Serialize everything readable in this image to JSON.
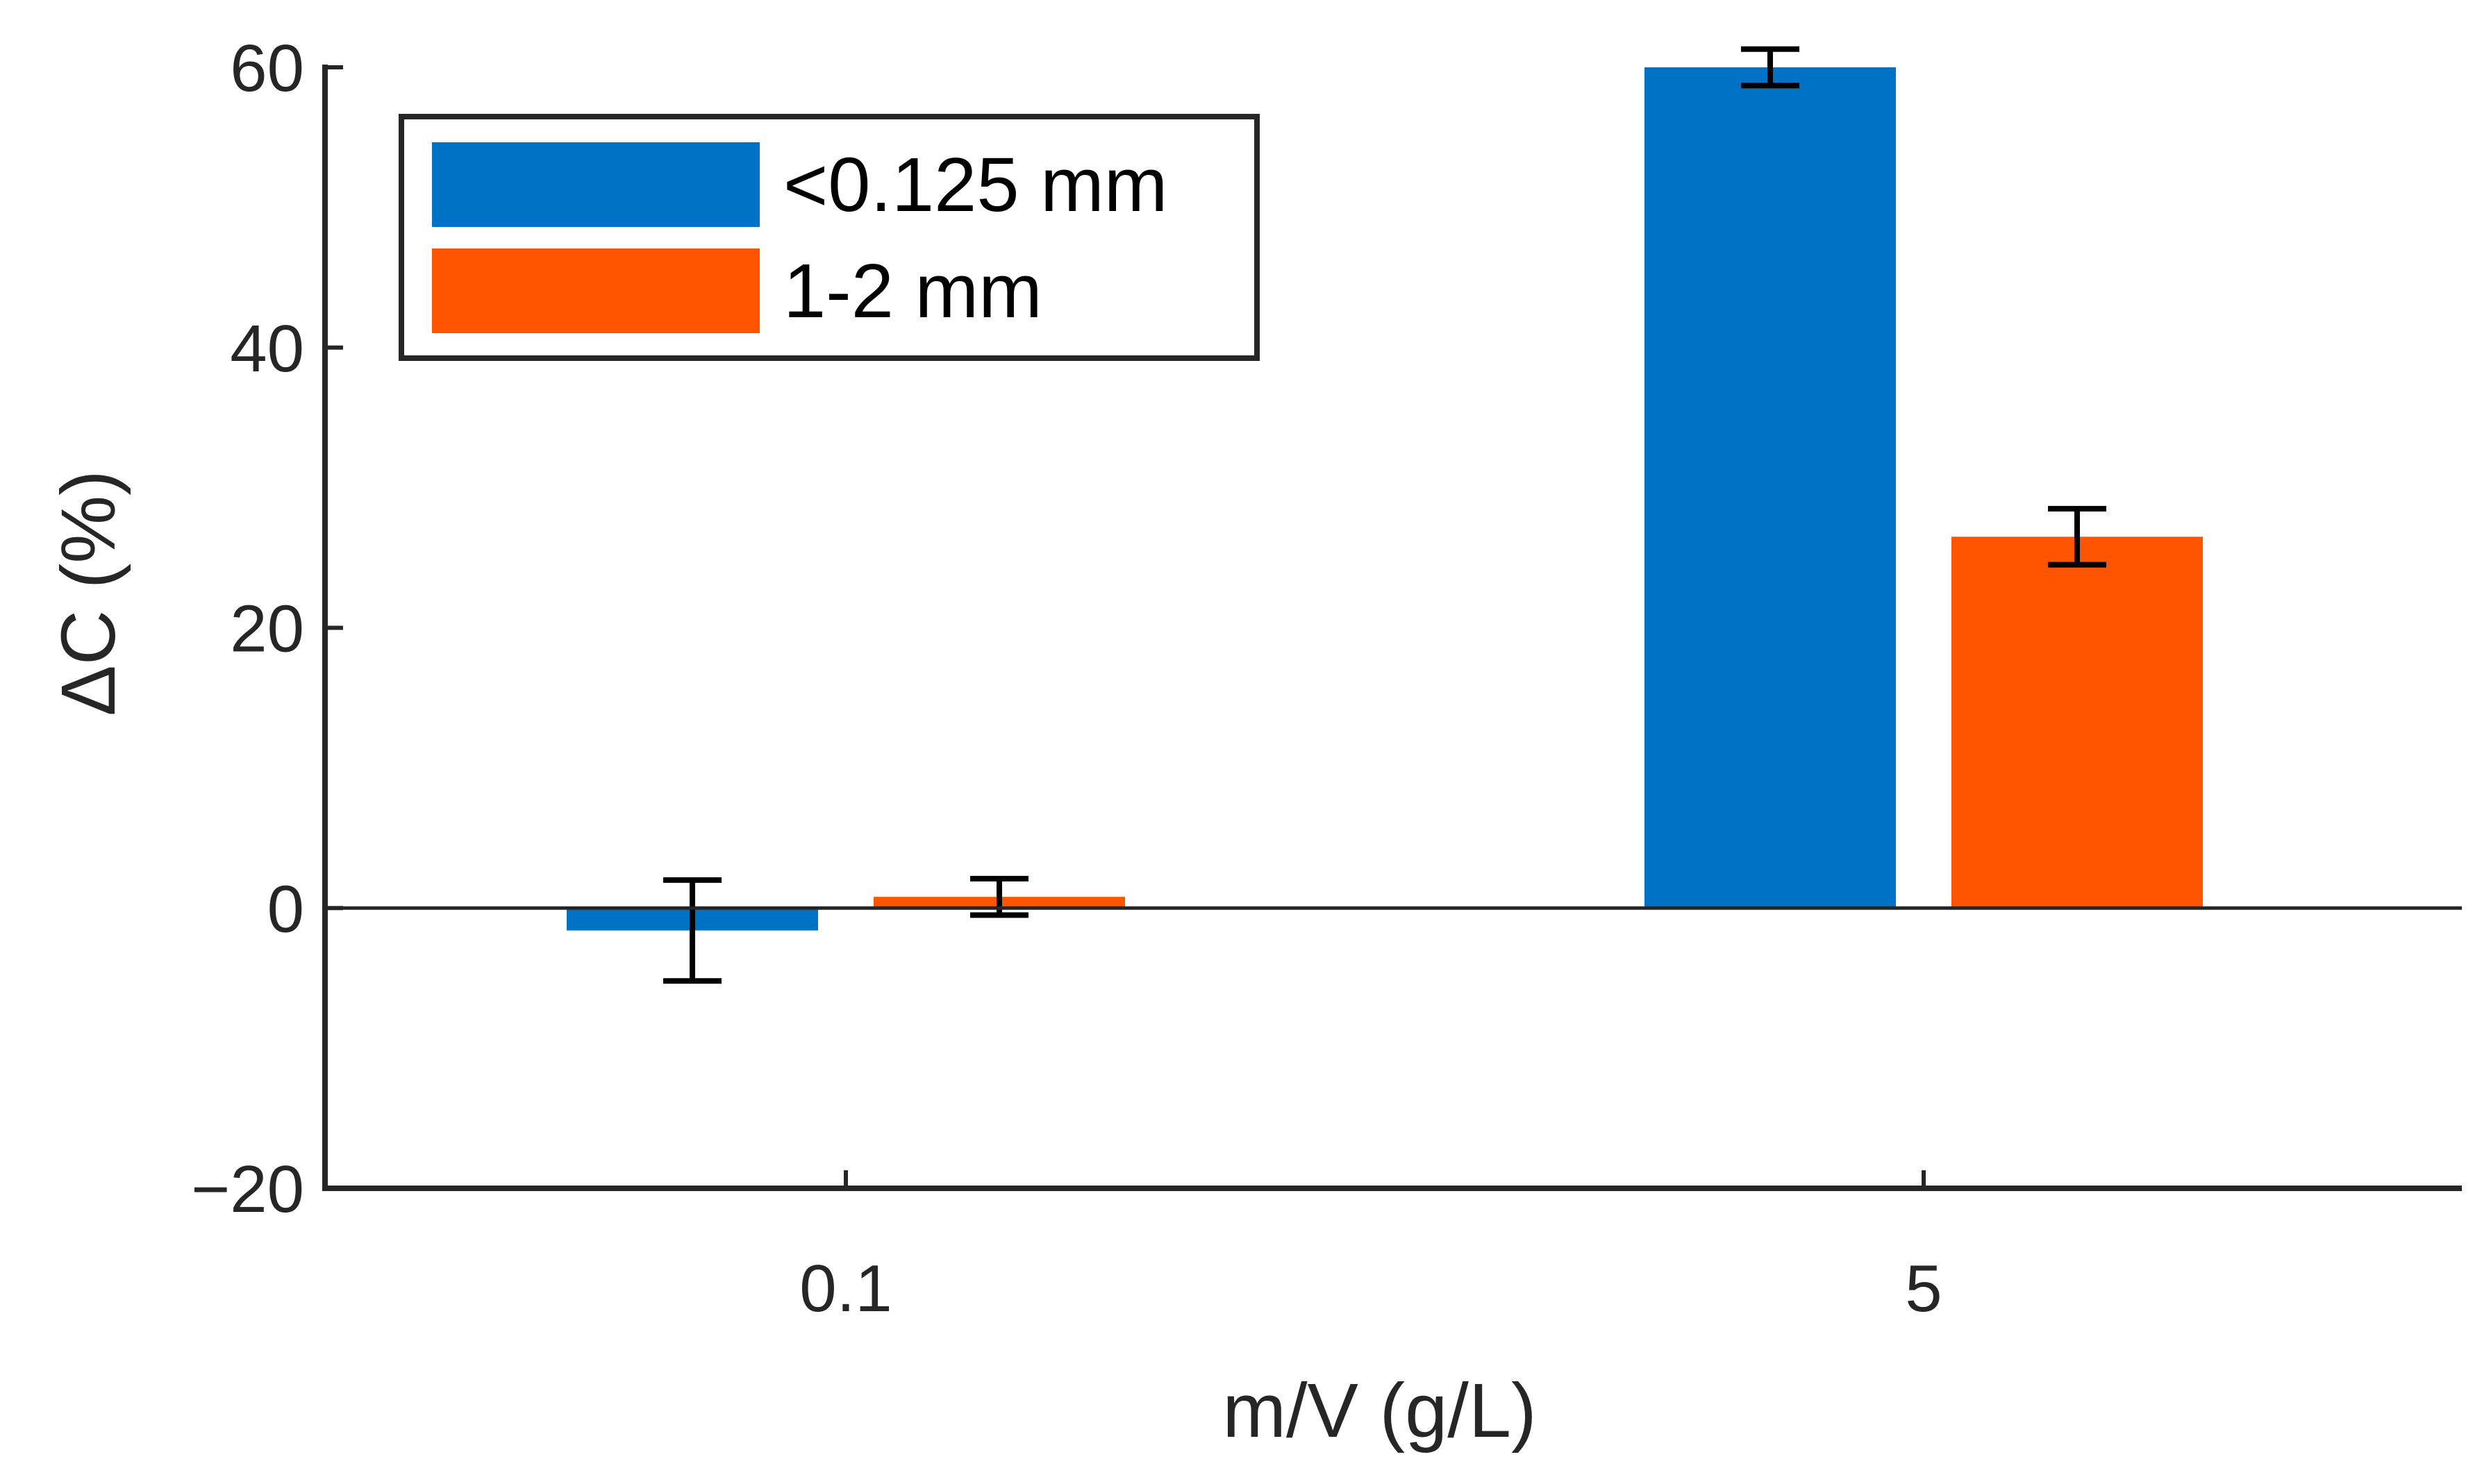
{
  "chart_data": {
    "type": "bar",
    "title": "",
    "xlabel": "m/V (g/L)",
    "ylabel": "ΔC (%)",
    "categories": [
      "0.1",
      "5"
    ],
    "ylim": [
      -20,
      60
    ],
    "yticks": [
      -20,
      0,
      20,
      40,
      60
    ],
    "ytick_labels": [
      "−20",
      "0",
      "20",
      "40",
      "60"
    ],
    "grid": false,
    "legend_position": "top-left",
    "series": [
      {
        "name": "<0.125 mm",
        "color": "#0072C6",
        "values": [
          -1.6,
          60.0
        ],
        "errors": [
          3.6,
          1.3
        ]
      },
      {
        "name": "1-2 mm",
        "color": "#FF5500",
        "values": [
          0.8,
          26.5
        ],
        "errors": [
          1.3,
          2.0
        ]
      }
    ]
  }
}
